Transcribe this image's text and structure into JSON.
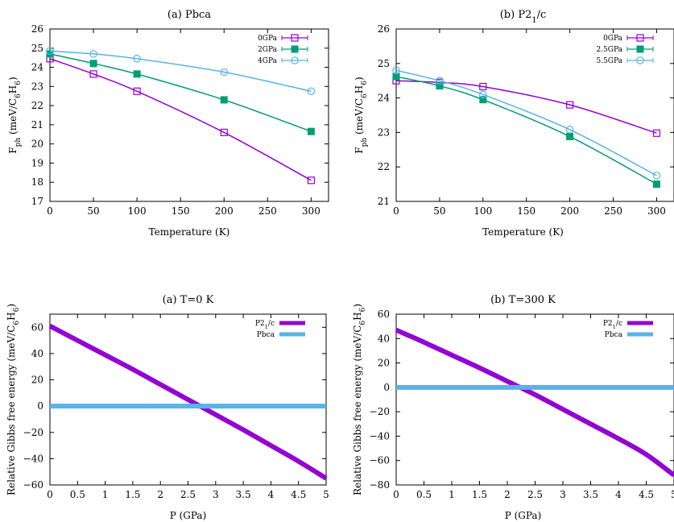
{
  "chart_data": [
    {
      "id": "p1",
      "type": "line",
      "title": "(a) Pbca",
      "xlabel": "Temperature (K)",
      "ylabel": {
        "main": "F",
        "sub": "ph",
        "unit": " (meV/C",
        "sub2": "6",
        "unit2": "H",
        "sub3": "6",
        "close": ")"
      },
      "xlim": [
        0,
        320
      ],
      "ylim": [
        17,
        26
      ],
      "xticks": [
        0,
        50,
        100,
        150,
        200,
        250,
        300
      ],
      "yticks": [
        17,
        18,
        19,
        20,
        21,
        22,
        23,
        24,
        25,
        26
      ],
      "legend_position": "top-right",
      "series": [
        {
          "name": "0GPa",
          "color": "#9400d3",
          "marker": "square-open",
          "x": [
            0,
            50,
            100,
            200,
            300
          ],
          "y": [
            24.45,
            23.65,
            22.75,
            20.6,
            18.1
          ]
        },
        {
          "name": "2GPa",
          "color": "#009e73",
          "marker": "square-filled",
          "x": [
            0,
            50,
            100,
            200,
            300
          ],
          "y": [
            24.7,
            24.2,
            23.65,
            22.3,
            20.65
          ]
        },
        {
          "name": "4GPa",
          "color": "#56b4e9",
          "marker": "circle-open",
          "x": [
            0,
            50,
            100,
            200,
            300
          ],
          "y": [
            24.85,
            24.7,
            24.45,
            23.75,
            22.75
          ]
        }
      ]
    },
    {
      "id": "p2",
      "type": "line",
      "title": {
        "main": "(b) P2",
        "sub": "1",
        "after": "/c"
      },
      "xlabel": "Temperature (K)",
      "ylabel": {
        "main": "F",
        "sub": "ph",
        "unit": " (meV/C",
        "sub2": "6",
        "unit2": "H",
        "sub3": "6",
        "close": ")"
      },
      "xlim": [
        0,
        320
      ],
      "ylim": [
        21,
        26
      ],
      "xticks": [
        0,
        50,
        100,
        150,
        200,
        250,
        300
      ],
      "yticks": [
        21,
        22,
        23,
        24,
        25,
        26
      ],
      "legend_position": "top-right",
      "series": [
        {
          "name": "0GPa",
          "color": "#9400d3",
          "marker": "square-open",
          "x": [
            0,
            50,
            100,
            200,
            300
          ],
          "y": [
            24.5,
            24.45,
            24.33,
            23.8,
            22.98
          ]
        },
        {
          "name": "2.5GPa",
          "color": "#009e73",
          "marker": "square-filled",
          "x": [
            0,
            50,
            100,
            200,
            300
          ],
          "y": [
            24.62,
            24.35,
            23.95,
            22.88,
            21.5
          ]
        },
        {
          "name": "5.5GPa",
          "color": "#56b4e9",
          "marker": "circle-open",
          "x": [
            0,
            50,
            100,
            200,
            300
          ],
          "y": [
            24.8,
            24.5,
            24.1,
            23.08,
            21.75
          ]
        }
      ]
    },
    {
      "id": "p3",
      "type": "line",
      "title": "(a) T=0 K",
      "xlabel": "P (GPa)",
      "ylabel": {
        "main": "Relative Gibbs free energy (meV/C",
        "sub": "6",
        "unit": "H",
        "sub2": "6",
        "close": ")"
      },
      "xlim": [
        0,
        5
      ],
      "ylim": [
        -60,
        70
      ],
      "xticks": [
        0,
        0.5,
        1,
        1.5,
        2,
        2.5,
        3,
        3.5,
        4,
        4.5,
        5
      ],
      "yticks": [
        -60,
        -40,
        -20,
        0,
        20,
        40,
        60
      ],
      "legend_position": "top-right",
      "series": [
        {
          "name": {
            "main": "P2",
            "sub": "1",
            "after": "/c"
          },
          "color": "#9400d3",
          "x": [
            0,
            0.5,
            1,
            1.5,
            2,
            2.5,
            3,
            3.5,
            4,
            4.5,
            5
          ],
          "y": [
            61,
            50,
            39,
            28,
            16.5,
            5,
            -6.5,
            -18,
            -30,
            -42,
            -55
          ]
        },
        {
          "name": "Pbca",
          "color": "#56b4e9",
          "x": [
            0,
            5
          ],
          "y": [
            0,
            0
          ]
        }
      ]
    },
    {
      "id": "p4",
      "type": "line",
      "title": "(b) T=300 K",
      "xlabel": "P (GPa)",
      "ylabel": {
        "main": "Relative Gibbs free energy (meV/C",
        "sub": "6",
        "unit": "H",
        "sub2": "6",
        "close": ")"
      },
      "xlim": [
        0,
        5
      ],
      "ylim": [
        -80,
        60
      ],
      "xticks": [
        0,
        0.5,
        1,
        1.5,
        2,
        2.5,
        3,
        3.5,
        4,
        4.5,
        5
      ],
      "yticks": [
        -80,
        -60,
        -40,
        -20,
        0,
        20,
        40,
        60
      ],
      "legend_position": "top-right",
      "series": [
        {
          "name": {
            "main": "P2",
            "sub": "1",
            "after": "/c"
          },
          "color": "#9400d3",
          "x": [
            0,
            0.5,
            1,
            1.5,
            2,
            2.5,
            3,
            3.5,
            4,
            4.5,
            5
          ],
          "y": [
            47,
            37,
            26.5,
            16,
            5,
            -6,
            -18,
            -30,
            -42,
            -55,
            -72
          ]
        },
        {
          "name": "Pbca",
          "color": "#56b4e9",
          "x": [
            0,
            5
          ],
          "y": [
            0,
            0
          ]
        }
      ]
    }
  ]
}
